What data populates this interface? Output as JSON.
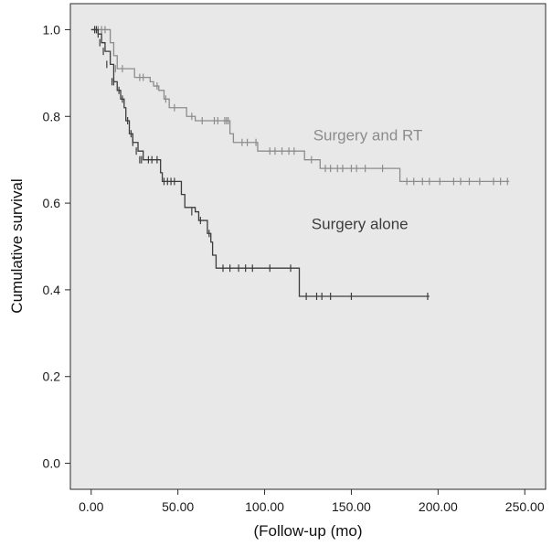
{
  "chart_data": {
    "type": "line",
    "subtype": "kaplan-meier step",
    "xlabel": "(Follow-up (mo)",
    "ylabel": "Cumulative survival",
    "xlim": [
      -12,
      262
    ],
    "ylim": [
      -0.06,
      1.06
    ],
    "x_ticks": [
      0,
      50,
      100,
      150,
      200,
      250
    ],
    "x_tick_labels": [
      "0.00",
      "50.00",
      "100.00",
      "150.00",
      "200.00",
      "250.00"
    ],
    "y_ticks": [
      0.0,
      0.2,
      0.4,
      0.6,
      0.8,
      1.0
    ],
    "y_tick_labels": [
      "0.0",
      "0.2",
      "0.4",
      "0.6",
      "0.8",
      "1.0"
    ],
    "grid": false,
    "background": "#e8e8e8",
    "series": [
      {
        "name": "Surgery and RT",
        "color": "#8c8c8c",
        "label_at": [
          128,
          0.745
        ],
        "steps": [
          [
            0,
            1.0
          ],
          [
            9,
            1.0
          ],
          [
            11,
            0.97
          ],
          [
            13,
            0.94
          ],
          [
            15,
            0.91
          ],
          [
            22,
            0.91
          ],
          [
            25,
            0.89
          ],
          [
            32,
            0.89
          ],
          [
            34,
            0.88
          ],
          [
            36,
            0.87
          ],
          [
            39,
            0.86
          ],
          [
            42,
            0.84
          ],
          [
            45,
            0.82
          ],
          [
            52,
            0.82
          ],
          [
            55,
            0.8
          ],
          [
            60,
            0.79
          ],
          [
            80,
            0.79
          ],
          [
            80,
            0.76
          ],
          [
            82,
            0.74
          ],
          [
            93,
            0.74
          ],
          [
            96,
            0.72
          ],
          [
            122,
            0.72
          ],
          [
            123,
            0.7
          ],
          [
            130,
            0.7
          ],
          [
            132,
            0.68
          ],
          [
            176,
            0.68
          ],
          [
            178,
            0.65
          ],
          [
            241,
            0.65
          ]
        ],
        "censored": [
          [
            4,
            1.0
          ],
          [
            6,
            1.0
          ],
          [
            8,
            1.0
          ],
          [
            14,
            0.91
          ],
          [
            18,
            0.91
          ],
          [
            28,
            0.89
          ],
          [
            30,
            0.89
          ],
          [
            38,
            0.87
          ],
          [
            43,
            0.84
          ],
          [
            48,
            0.82
          ],
          [
            58,
            0.8
          ],
          [
            64,
            0.79
          ],
          [
            71,
            0.79
          ],
          [
            73,
            0.79
          ],
          [
            77,
            0.79
          ],
          [
            78,
            0.79
          ],
          [
            79,
            0.79
          ],
          [
            87,
            0.74
          ],
          [
            90,
            0.74
          ],
          [
            95,
            0.74
          ],
          [
            103,
            0.72
          ],
          [
            106,
            0.72
          ],
          [
            110,
            0.72
          ],
          [
            114,
            0.72
          ],
          [
            117,
            0.72
          ],
          [
            127,
            0.7
          ],
          [
            135,
            0.68
          ],
          [
            138,
            0.68
          ],
          [
            142,
            0.68
          ],
          [
            145,
            0.68
          ],
          [
            150,
            0.68
          ],
          [
            153,
            0.68
          ],
          [
            158,
            0.68
          ],
          [
            168,
            0.68
          ],
          [
            182,
            0.65
          ],
          [
            186,
            0.65
          ],
          [
            191,
            0.65
          ],
          [
            195,
            0.65
          ],
          [
            201,
            0.65
          ],
          [
            209,
            0.65
          ],
          [
            213,
            0.65
          ],
          [
            218,
            0.65
          ],
          [
            224,
            0.65
          ],
          [
            232,
            0.65
          ],
          [
            236,
            0.65
          ],
          [
            240,
            0.65
          ]
        ]
      },
      {
        "name": "Surgery alone",
        "color": "#3c3c3c",
        "label_at": [
          127,
          0.54
        ],
        "steps": [
          [
            0,
            1.0
          ],
          [
            4,
            0.99
          ],
          [
            6,
            0.97
          ],
          [
            8,
            0.95
          ],
          [
            11,
            0.92
          ],
          [
            13,
            0.88
          ],
          [
            15,
            0.86
          ],
          [
            17,
            0.84
          ],
          [
            19,
            0.82
          ],
          [
            20,
            0.79
          ],
          [
            22,
            0.76
          ],
          [
            24,
            0.74
          ],
          [
            27,
            0.72
          ],
          [
            30,
            0.7
          ],
          [
            38,
            0.7
          ],
          [
            40,
            0.67
          ],
          [
            41,
            0.65
          ],
          [
            51,
            0.65
          ],
          [
            52,
            0.62
          ],
          [
            54,
            0.59
          ],
          [
            60,
            0.58
          ],
          [
            62,
            0.56
          ],
          [
            67,
            0.53
          ],
          [
            69,
            0.51
          ],
          [
            70,
            0.48
          ],
          [
            72,
            0.45
          ],
          [
            119,
            0.45
          ],
          [
            120,
            0.385
          ],
          [
            195,
            0.385
          ]
        ],
        "censored": [
          [
            2,
            1.0
          ],
          [
            3,
            1.0
          ],
          [
            4,
            0.99
          ],
          [
            5,
            0.97
          ],
          [
            7,
            0.95
          ],
          [
            9,
            0.92
          ],
          [
            12,
            0.88
          ],
          [
            13,
            0.88
          ],
          [
            16,
            0.86
          ],
          [
            18,
            0.84
          ],
          [
            21,
            0.79
          ],
          [
            23,
            0.76
          ],
          [
            24,
            0.74
          ],
          [
            26,
            0.72
          ],
          [
            28,
            0.7
          ],
          [
            29,
            0.7
          ],
          [
            33,
            0.7
          ],
          [
            35,
            0.7
          ],
          [
            38,
            0.7
          ],
          [
            42,
            0.65
          ],
          [
            44,
            0.65
          ],
          [
            46,
            0.65
          ],
          [
            48,
            0.65
          ],
          [
            58,
            0.58
          ],
          [
            63,
            0.56
          ],
          [
            68,
            0.53
          ],
          [
            76,
            0.45
          ],
          [
            80,
            0.45
          ],
          [
            85,
            0.45
          ],
          [
            89,
            0.45
          ],
          [
            93,
            0.45
          ],
          [
            103,
            0.45
          ],
          [
            115,
            0.45
          ],
          [
            124,
            0.385
          ],
          [
            130,
            0.385
          ],
          [
            133,
            0.385
          ],
          [
            138,
            0.385
          ],
          [
            150,
            0.385
          ],
          [
            194,
            0.385
          ]
        ]
      }
    ]
  }
}
